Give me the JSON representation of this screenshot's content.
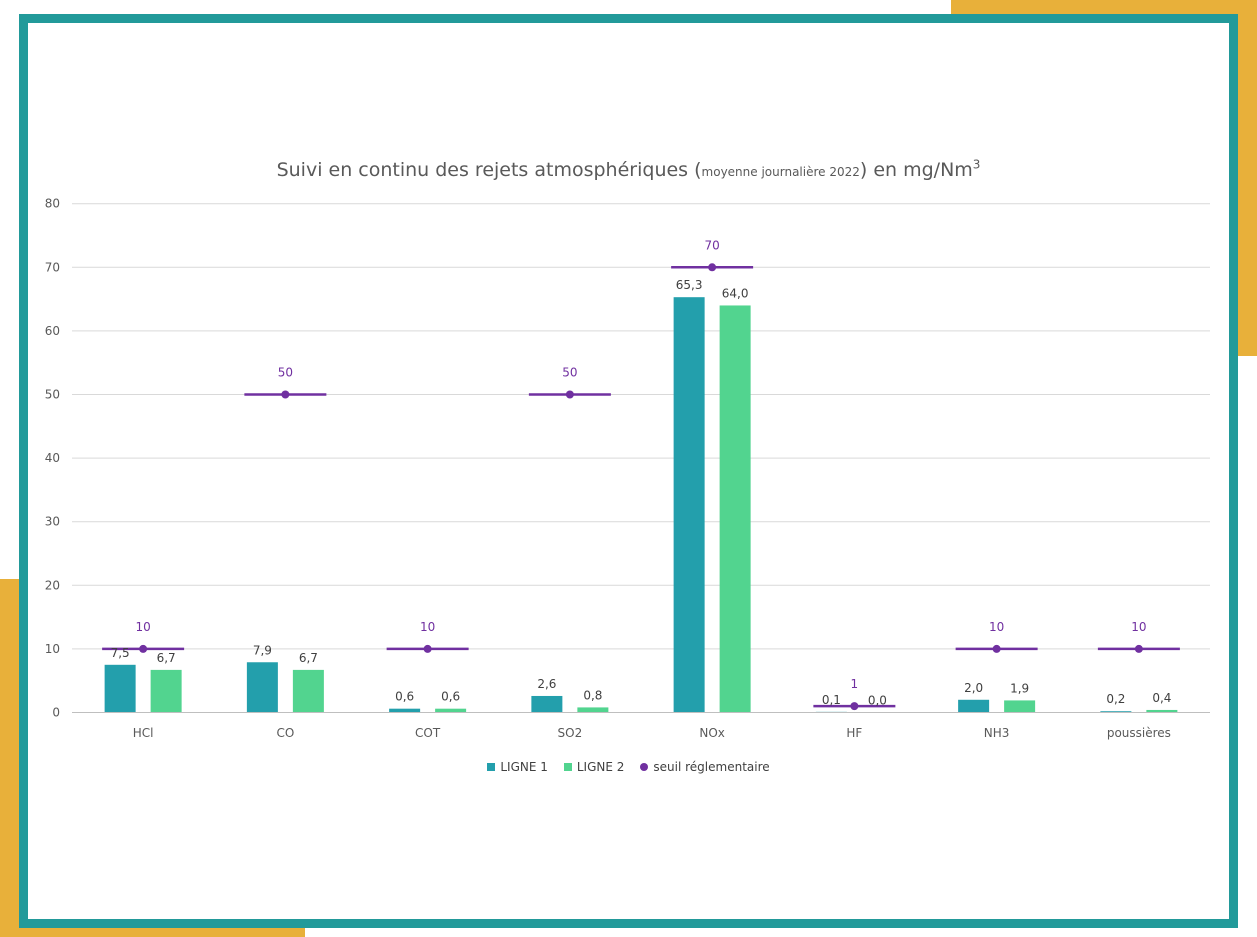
{
  "colors": {
    "frame": "#229a9a",
    "accent": "#e8b03a",
    "ligne1": "#239fac",
    "ligne2": "#52d48f",
    "seuil": "#7030a0",
    "grid": "#d9d9d9",
    "text": "#595959"
  },
  "chart_data": {
    "type": "bar",
    "title_main": "Suivi en continu des rejets atmosphériques (",
    "title_small": "moyenne journalière 2022",
    "title_end": ") en mg/Nm",
    "title_sup": "3",
    "categories": [
      "HCl",
      "CO",
      "COT",
      "SO2",
      "NOx",
      "HF",
      "NH3",
      "poussières"
    ],
    "series": [
      {
        "name": "LIGNE 1",
        "values": [
          7.5,
          7.9,
          0.6,
          2.6,
          65.3,
          0.1,
          2.0,
          0.2
        ],
        "labels": [
          "7,5",
          "7,9",
          "0,6",
          "2,6",
          "65,3",
          "0,1",
          "2,0",
          "0,2"
        ]
      },
      {
        "name": "LIGNE 2",
        "values": [
          6.7,
          6.7,
          0.6,
          0.8,
          64.0,
          0.0,
          1.9,
          0.4
        ],
        "labels": [
          "6,7",
          "6,7",
          "0,6",
          "0,8",
          "64,0",
          "0,0",
          "1,9",
          "0,4"
        ]
      }
    ],
    "threshold": {
      "name": "seuil réglementaire",
      "values": [
        10,
        50,
        10,
        50,
        70,
        1,
        10,
        10
      ],
      "labels": [
        "10",
        "50",
        "10",
        "50",
        "70",
        "1",
        "10",
        "10"
      ]
    },
    "ylim": [
      0,
      80
    ],
    "yticks": [
      0,
      10,
      20,
      30,
      40,
      50,
      60,
      70,
      80
    ],
    "grid": true,
    "legend_position": "bottom"
  }
}
